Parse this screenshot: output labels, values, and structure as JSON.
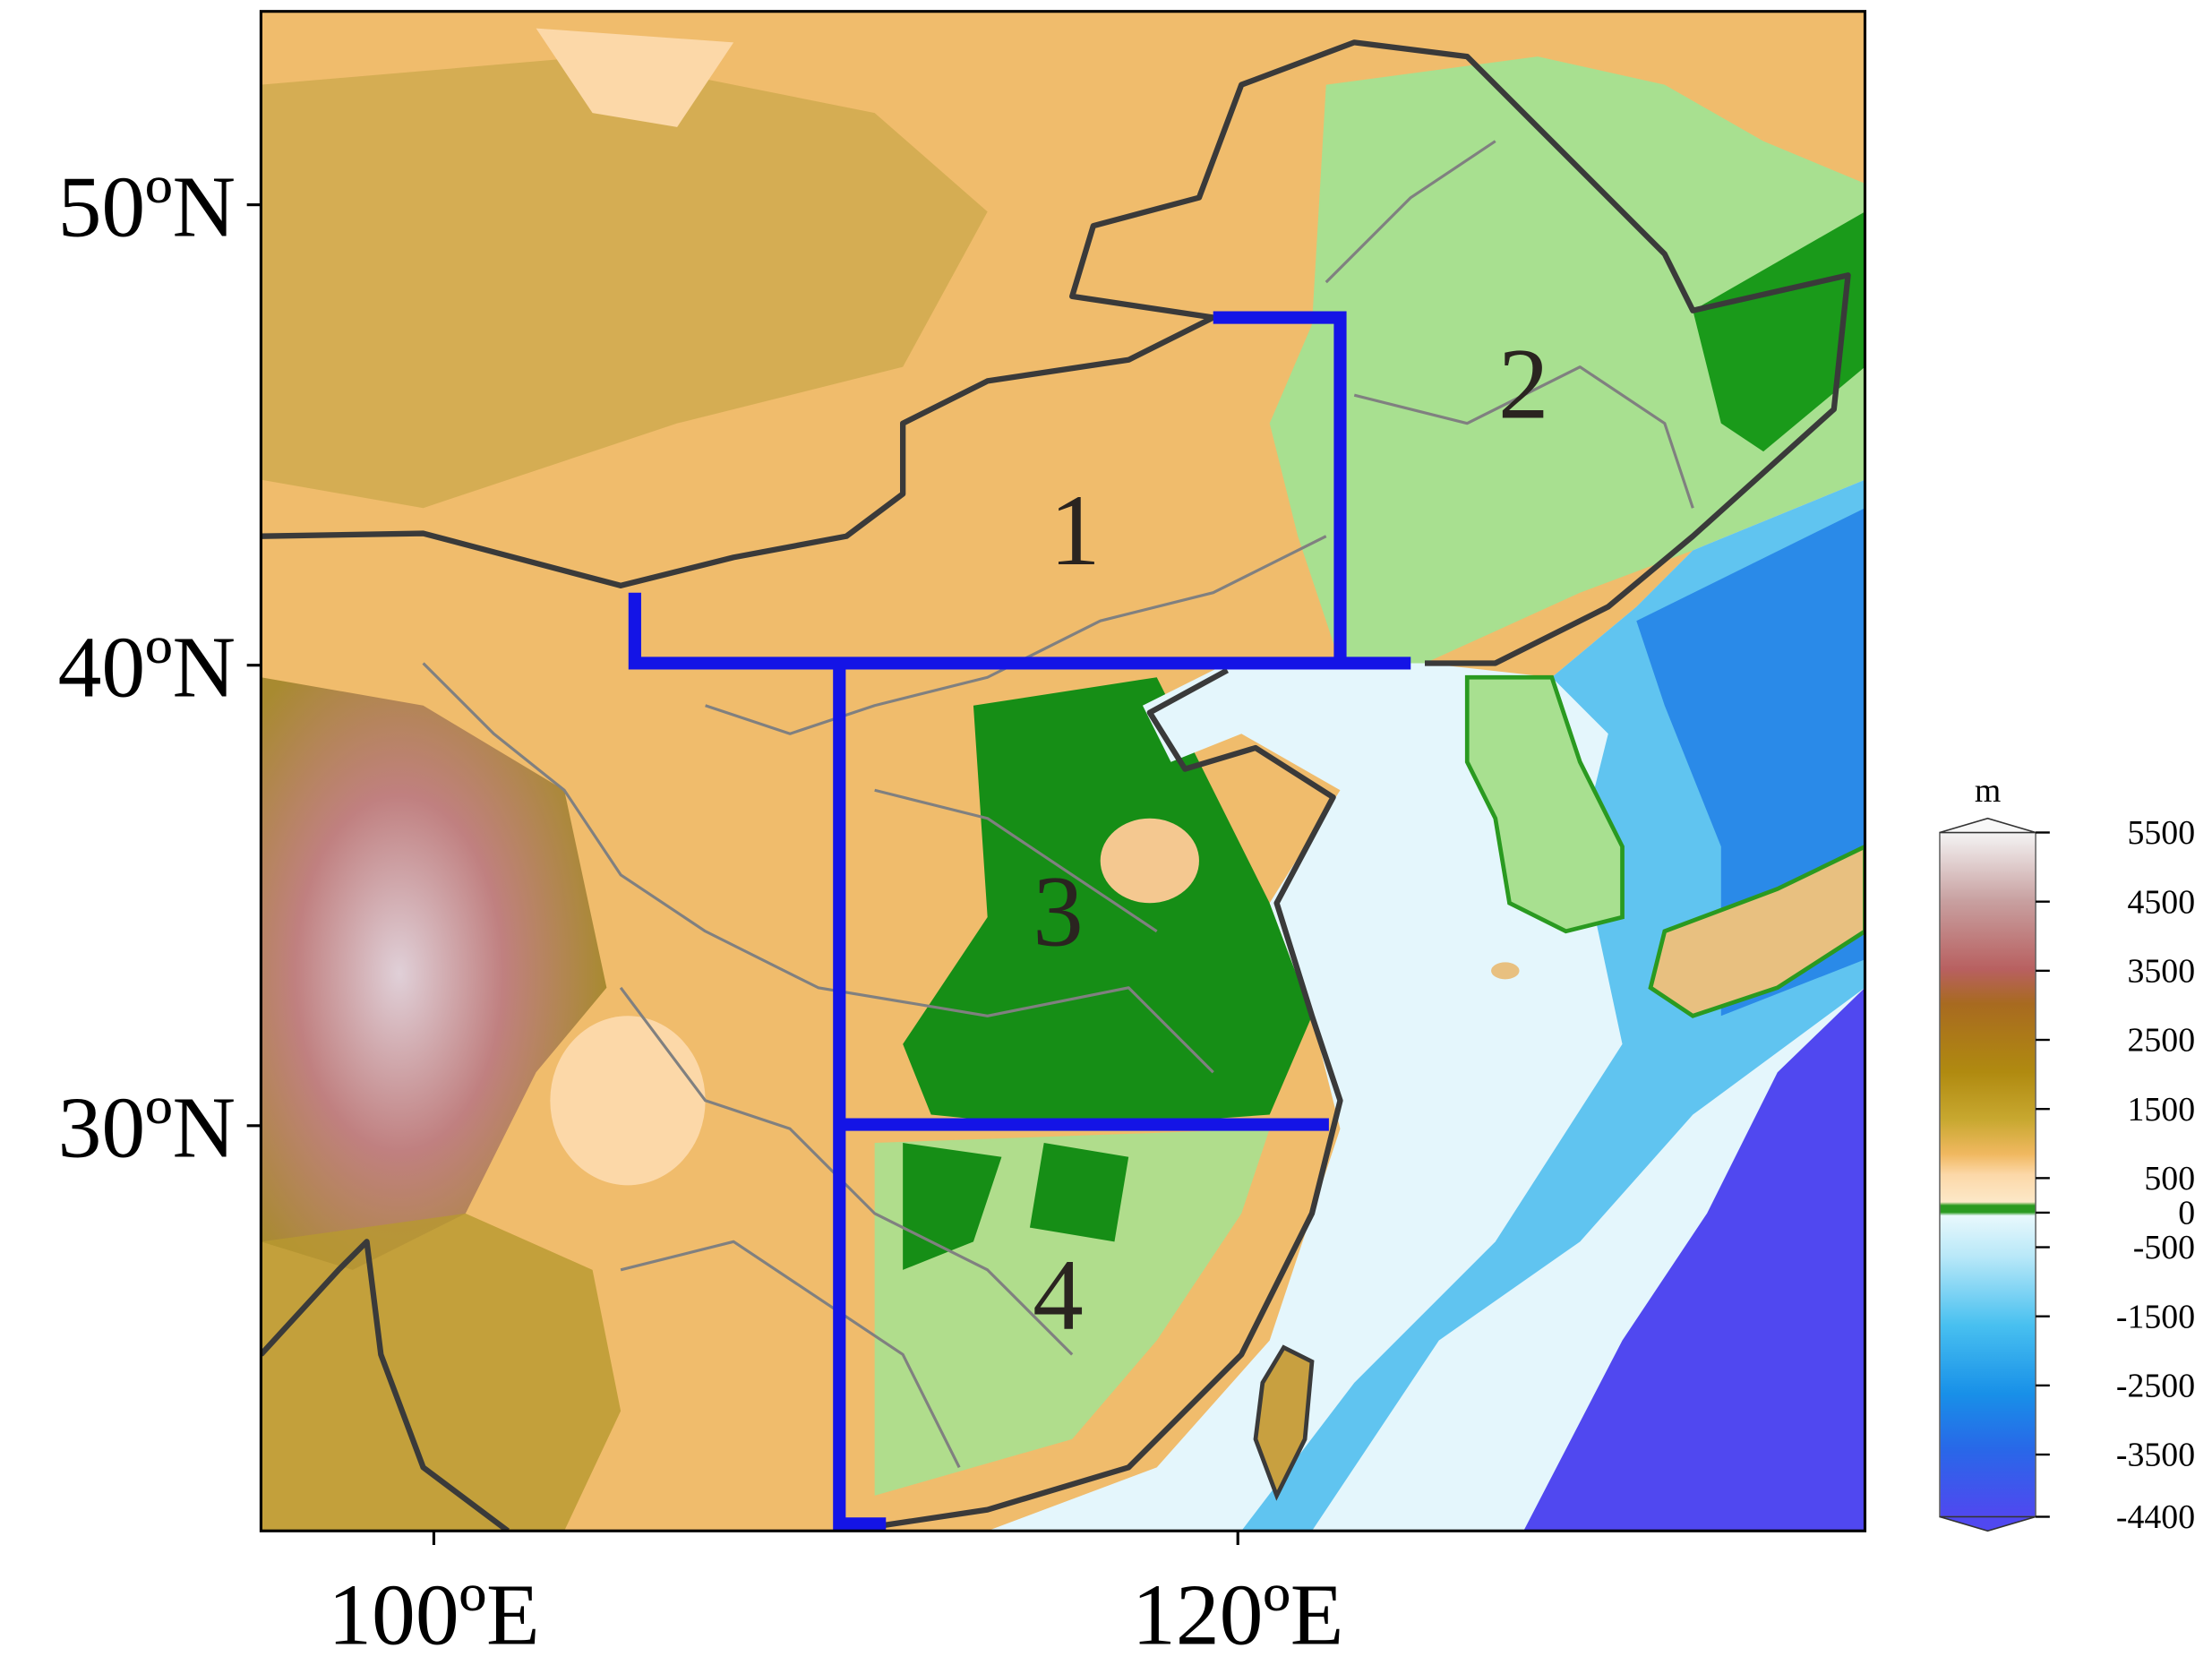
{
  "map": {
    "xlim": [
      95.7,
      135.6
    ],
    "ylim": [
      21.2,
      54.2
    ],
    "xticks": [
      {
        "value": 100,
        "label": "100ºE"
      },
      {
        "value": 120,
        "label": "120ºE"
      }
    ],
    "yticks": [
      {
        "value": 50,
        "label": "50ºN"
      },
      {
        "value": 40,
        "label": "40ºN"
      },
      {
        "value": 30,
        "label": "30ºN"
      }
    ],
    "regions": [
      "1",
      "2",
      "3",
      "4"
    ]
  },
  "colorbar": {
    "unit": "m",
    "lim": [
      -4400,
      5500
    ],
    "ticks": [
      5500,
      4500,
      3500,
      2500,
      1500,
      500,
      0,
      -500,
      -1500,
      -2500,
      -3500,
      -4400
    ]
  }
}
